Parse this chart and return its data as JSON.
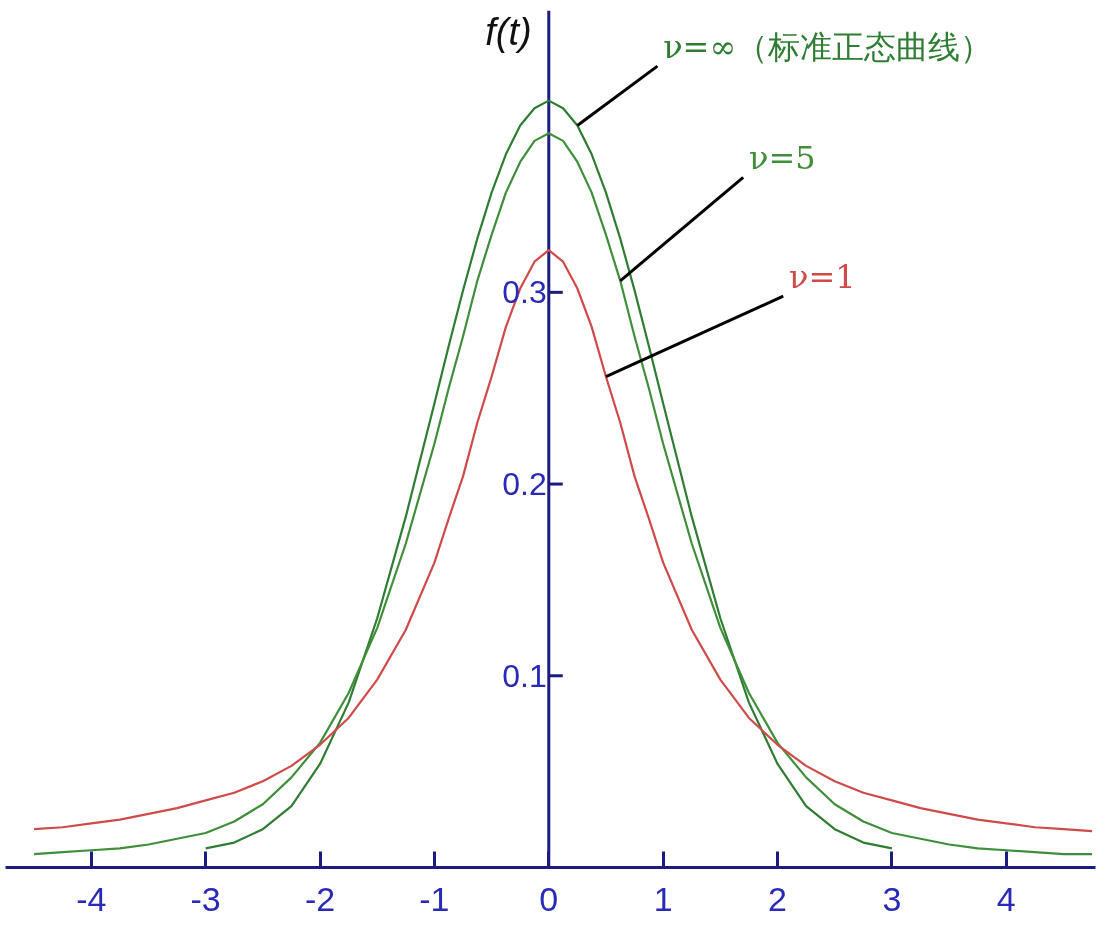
{
  "chart_data": {
    "type": "line",
    "ylabel": "f(t)",
    "xlim": [
      -4.75,
      4.78
    ],
    "ylim": [
      0,
      0.447
    ],
    "xticks": [
      -4,
      -3,
      -2,
      -1,
      0,
      1,
      2,
      3,
      4
    ],
    "yticks": [
      0.1,
      0.2,
      0.3
    ],
    "grid": false,
    "line_style": "solid",
    "series": [
      {
        "name": "ν=∞（标准正态曲线）",
        "color": "#2e7d32",
        "x": [
          -3,
          -2.75,
          -2.5,
          -2.25,
          -2,
          -1.75,
          -1.5,
          -1.25,
          -1,
          -0.875,
          -0.75,
          -0.625,
          -0.5,
          -0.375,
          -0.25,
          -0.125,
          0,
          0.125,
          0.25,
          0.375,
          0.5,
          0.625,
          0.75,
          0.875,
          1,
          1.25,
          1.5,
          1.75,
          2,
          2.25,
          2.5,
          2.75,
          3
        ],
        "values": [
          0.01,
          0.013,
          0.02,
          0.032,
          0.054,
          0.086,
          0.13,
          0.183,
          0.242,
          0.272,
          0.301,
          0.328,
          0.352,
          0.372,
          0.387,
          0.396,
          0.4,
          0.396,
          0.387,
          0.372,
          0.352,
          0.328,
          0.301,
          0.272,
          0.242,
          0.183,
          0.13,
          0.086,
          0.054,
          0.032,
          0.02,
          0.013,
          0.01
        ]
      },
      {
        "name": "ν=5",
        "color": "#3f8f3a",
        "x": [
          -4.5,
          -4.25,
          -4,
          -3.75,
          -3.5,
          -3.25,
          -3,
          -2.75,
          -2.5,
          -2.25,
          -2,
          -1.75,
          -1.5,
          -1.25,
          -1,
          -0.875,
          -0.75,
          -0.625,
          -0.5,
          -0.375,
          -0.25,
          -0.125,
          0,
          0.125,
          0.25,
          0.375,
          0.5,
          0.625,
          0.75,
          0.875,
          1,
          1.25,
          1.5,
          1.75,
          2,
          2.25,
          2.5,
          2.75,
          3,
          3.25,
          3.5,
          3.75,
          4,
          4.25,
          4.5,
          4.75
        ],
        "values": [
          0.007,
          0.008,
          0.009,
          0.01,
          0.012,
          0.015,
          0.018,
          0.024,
          0.033,
          0.047,
          0.065,
          0.091,
          0.125,
          0.169,
          0.221,
          0.25,
          0.277,
          0.306,
          0.33,
          0.352,
          0.368,
          0.379,
          0.383,
          0.379,
          0.368,
          0.352,
          0.33,
          0.306,
          0.277,
          0.25,
          0.221,
          0.169,
          0.125,
          0.091,
          0.065,
          0.047,
          0.033,
          0.024,
          0.018,
          0.015,
          0.012,
          0.01,
          0.009,
          0.008,
          0.007,
          0.007
        ]
      },
      {
        "name": "ν=1",
        "color": "#d04a4a",
        "x": [
          -4.5,
          -4.25,
          -4,
          -3.75,
          -3.5,
          -3.25,
          -3,
          -2.75,
          -2.5,
          -2.25,
          -2,
          -1.75,
          -1.5,
          -1.25,
          -1,
          -0.875,
          -0.75,
          -0.625,
          -0.5,
          -0.375,
          -0.25,
          -0.125,
          0,
          0.125,
          0.25,
          0.375,
          0.5,
          0.625,
          0.75,
          0.875,
          1,
          1.25,
          1.5,
          1.75,
          2,
          2.25,
          2.5,
          2.75,
          3,
          3.25,
          3.5,
          3.75,
          4,
          4.25,
          4.5,
          4.75
        ],
        "values": [
          0.02,
          0.021,
          0.023,
          0.025,
          0.028,
          0.031,
          0.035,
          0.039,
          0.045,
          0.053,
          0.064,
          0.078,
          0.098,
          0.124,
          0.159,
          0.182,
          0.204,
          0.232,
          0.256,
          0.282,
          0.302,
          0.316,
          0.322,
          0.316,
          0.302,
          0.282,
          0.256,
          0.232,
          0.204,
          0.182,
          0.159,
          0.124,
          0.098,
          0.078,
          0.064,
          0.053,
          0.045,
          0.039,
          0.035,
          0.031,
          0.028,
          0.025,
          0.023,
          0.021,
          0.02,
          0.019
        ]
      }
    ]
  }
}
